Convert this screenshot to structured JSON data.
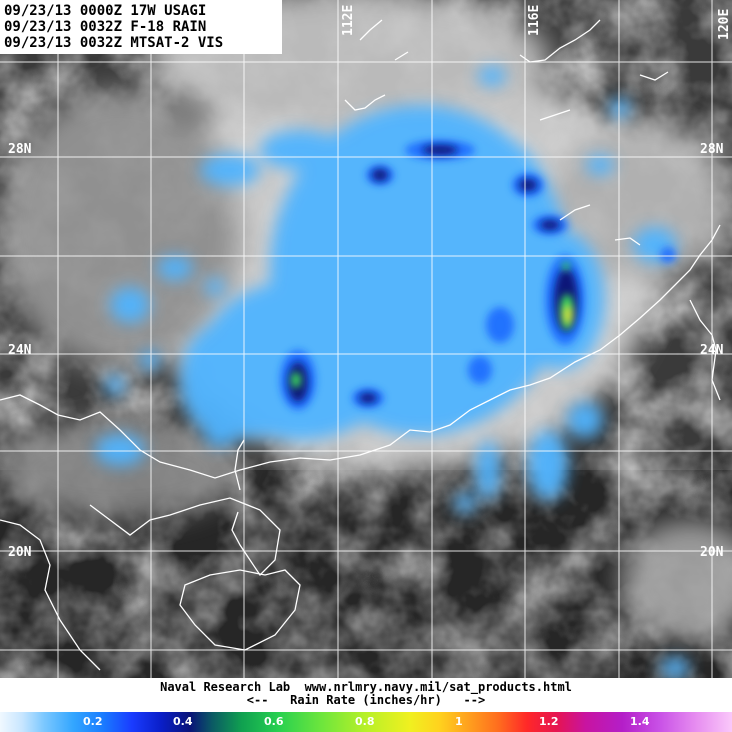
{
  "header": {
    "line1": "09/23/13 0000Z 17W USAGI",
    "line2": "09/23/13 0032Z F-18 RAIN",
    "line3": "09/23/13 0032Z MTSAT-2 VIS"
  },
  "grid_labels": {
    "lon_112": "112E",
    "lon_116": "116E",
    "lon_120": "120E",
    "lat_28_left": "28N",
    "lat_28_right": "28N",
    "lat_24_left": "24N",
    "lat_24_right": "24N",
    "lat_20_left": "20N",
    "lat_20_right": "20N"
  },
  "footer": {
    "credit": "Naval Research Lab  www.nrlmry.navy.mil/sat_products.html",
    "scale_title": "<--   Rain Rate (inches/hr)   -->"
  },
  "colorbar": {
    "ticks": [
      "0.2",
      "0.4",
      "0.6",
      "0.8",
      "1",
      "1.2",
      "1.4"
    ]
  },
  "colors": {
    "rain_light": "#4fb4ff",
    "rain_mid": "#1a6cff",
    "rain_heavy": "#0a1478",
    "rain_peak_green": "#3cdc5a",
    "rain_peak_yellow": "#f0e628",
    "coastline": "#ffffff",
    "gridline": "#ffffff"
  }
}
